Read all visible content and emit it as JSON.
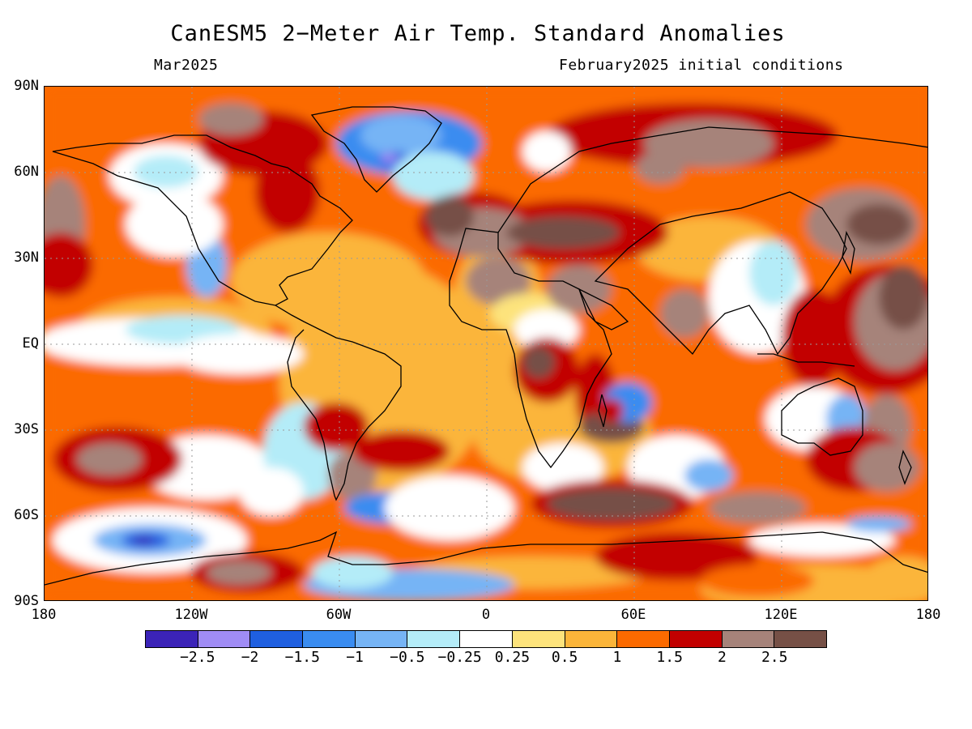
{
  "title": "CanESM5 2−Meter Air Temp. Standard Anomalies",
  "subtitle_left": "Mar2025",
  "subtitle_right": "February2025 initial conditions",
  "lat_labels": [
    "90N",
    "60N",
    "30N",
    "EQ",
    "30S",
    "60S",
    "90S"
  ],
  "lon_labels": [
    "180",
    "120W",
    "60W",
    "0",
    "60E",
    "120E",
    "180"
  ],
  "colorbar": {
    "colors": [
      "#3b23b8",
      "#a08cf5",
      "#1f5fe0",
      "#3a8cf0",
      "#76b4f5",
      "#b4ecf8",
      "#ffffff",
      "#fde37c",
      "#fbb53a",
      "#fb6a00",
      "#c20000",
      "#a6837a",
      "#765046"
    ],
    "labels": [
      "−2.5",
      "−2",
      "−1.5",
      "−1",
      "−0.5",
      "−0.25",
      "0.25",
      "0.5",
      "1",
      "1.5",
      "2",
      "2.5"
    ]
  }
}
